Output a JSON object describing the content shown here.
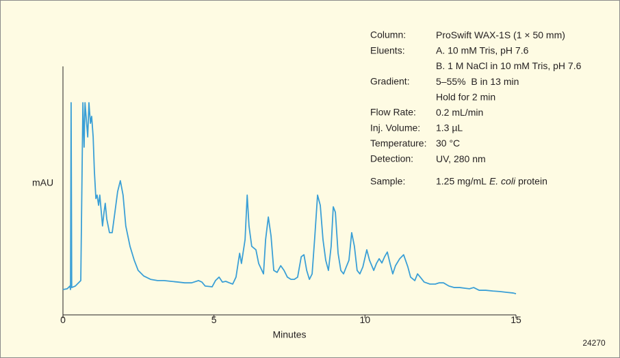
{
  "chart_data": {
    "type": "line",
    "xlabel": "Minutes",
    "ylabel": "mAU",
    "figure_id": "24270",
    "xlim": [
      0,
      15
    ],
    "xticks": [
      0,
      5,
      10,
      15
    ],
    "ylim": [
      0,
      100
    ],
    "annotations": [
      {
        "label": "Column:",
        "lines": [
          [
            "ProSwift WAX-1S (1 × 50 mm)"
          ]
        ]
      },
      {
        "label": "Eluents:",
        "lines": [
          [
            "A. 10 mM Tris, pH 7.6"
          ],
          [
            "B. 1 M NaCl in 10 mM Tris, pH 7.6"
          ]
        ]
      },
      {
        "label": "Gradient:",
        "lines": [
          [
            "5–55%  B in 13 min"
          ],
          [
            "Hold for 2 min"
          ]
        ]
      },
      {
        "label": "Flow Rate:",
        "lines": [
          [
            "0.2 mL/min"
          ]
        ]
      },
      {
        "label": "Inj. Volume:",
        "lines": [
          [
            "1.3 µL"
          ]
        ]
      },
      {
        "label": "Temperature:",
        "lines": [
          [
            "30 °C"
          ]
        ]
      },
      {
        "label": "Detection:",
        "lines": [
          [
            "UV, 280 nm"
          ]
        ]
      },
      {
        "label": "Sample:",
        "lines": [
          [
            "1.25 mg/mL",
            "E. coli",
            "protein"
          ]
        ]
      }
    ],
    "series": [
      {
        "color": "#3a9fd6",
        "x": [
          0,
          0.14,
          0.23,
          0.25,
          0.27,
          0.29,
          0.41,
          0.59,
          0.66,
          0.7,
          0.73,
          0.82,
          0.86,
          0.91,
          0.95,
          1.0,
          1.04,
          1.09,
          1.13,
          1.18,
          1.22,
          1.27,
          1.31,
          1.36,
          1.4,
          1.45,
          1.54,
          1.63,
          1.72,
          1.81,
          1.9,
          1.99,
          2.08,
          2.22,
          2.36,
          2.49,
          2.67,
          2.9,
          3.13,
          3.35,
          3.58,
          3.81,
          4.03,
          4.26,
          4.49,
          4.6,
          4.71,
          4.94,
          5.05,
          5.17,
          5.28,
          5.39,
          5.51,
          5.62,
          5.73,
          5.85,
          5.91,
          6.03,
          6.1,
          6.16,
          6.25,
          6.39,
          6.48,
          6.64,
          6.71,
          6.8,
          6.89,
          6.98,
          7.09,
          7.21,
          7.32,
          7.43,
          7.55,
          7.66,
          7.77,
          7.89,
          7.98,
          8.07,
          8.16,
          8.25,
          8.34,
          8.43,
          8.52,
          8.61,
          8.7,
          8.79,
          8.88,
          8.95,
          9.02,
          9.11,
          9.2,
          9.29,
          9.38,
          9.47,
          9.56,
          9.65,
          9.74,
          9.83,
          9.93,
          10.06,
          10.15,
          10.29,
          10.38,
          10.47,
          10.56,
          10.65,
          10.74,
          10.83,
          10.92,
          11.01,
          11.15,
          11.28,
          11.42,
          11.51,
          11.65,
          11.74,
          11.83,
          11.96,
          12.15,
          12.33,
          12.46,
          12.6,
          12.78,
          12.96,
          13.14,
          13.32,
          13.46,
          13.6,
          13.78,
          14.0,
          14.23,
          14.46,
          14.68,
          14.91,
          15.0
        ],
        "values": [
          10.2,
          10.5,
          11.6,
          10.2,
          85.4,
          11.0,
          11.6,
          13.8,
          85.4,
          67.5,
          85.4,
          71.6,
          85.4,
          77.1,
          79.9,
          71.6,
          57.9,
          46.8,
          48.2,
          44.1,
          48.2,
          41.3,
          35.8,
          41.3,
          44.9,
          38.6,
          33.1,
          33.1,
          41.3,
          49.6,
          54.0,
          48.2,
          35.8,
          27.6,
          22.0,
          17.9,
          15.7,
          14.3,
          13.8,
          13.8,
          13.5,
          13.2,
          12.9,
          12.9,
          13.8,
          13.2,
          11.6,
          11.3,
          13.8,
          15.2,
          13.2,
          13.5,
          12.9,
          12.4,
          15.2,
          24.8,
          20.7,
          30.3,
          48.2,
          35.8,
          27.6,
          26.2,
          20.7,
          16.5,
          30.3,
          39.4,
          31.7,
          17.9,
          17.1,
          19.8,
          17.9,
          15.2,
          14.3,
          14.3,
          15.2,
          23.4,
          24.2,
          17.9,
          14.3,
          16.5,
          31.7,
          48.2,
          44.1,
          30.3,
          22.0,
          17.9,
          27.6,
          43.5,
          41.3,
          24.8,
          17.9,
          16.5,
          19.3,
          22.0,
          33.1,
          27.6,
          17.9,
          16.5,
          19.3,
          26.2,
          22.0,
          17.9,
          20.7,
          22.6,
          20.9,
          23.4,
          25.3,
          20.7,
          16.5,
          19.8,
          22.6,
          24.2,
          19.3,
          15.2,
          13.8,
          16.5,
          15.2,
          13.2,
          12.4,
          12.4,
          12.9,
          12.9,
          11.6,
          11.0,
          11.0,
          10.7,
          10.5,
          11.0,
          9.9,
          9.9,
          9.6,
          9.4,
          9.1,
          8.8,
          8.5
        ]
      }
    ]
  }
}
